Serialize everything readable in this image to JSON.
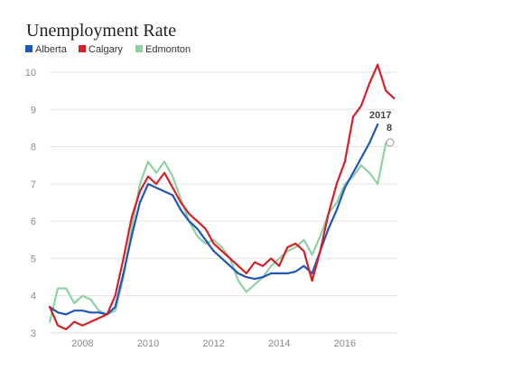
{
  "chart_data": {
    "type": "line",
    "title": "Unemployment Rate",
    "xlabel": "",
    "ylabel": "",
    "xlim": [
      2007,
      2017.6
    ],
    "ylim": [
      3,
      10.4
    ],
    "y_ticks": [
      3,
      4,
      5,
      6,
      7,
      8,
      9,
      10
    ],
    "x_ticks": [
      2008,
      2010,
      2012,
      2014,
      2016
    ],
    "grid": true,
    "legend_position": "top-left",
    "annotations": [
      "2017",
      "8"
    ],
    "series": [
      {
        "name": "Alberta",
        "color": "#1f56b8",
        "points": [
          [
            2007.0,
            3.7
          ],
          [
            2007.25,
            3.55
          ],
          [
            2007.5,
            3.5
          ],
          [
            2007.75,
            3.6
          ],
          [
            2008.0,
            3.6
          ],
          [
            2008.25,
            3.55
          ],
          [
            2008.5,
            3.55
          ],
          [
            2008.75,
            3.5
          ],
          [
            2009.0,
            3.7
          ],
          [
            2009.25,
            4.6
          ],
          [
            2009.5,
            5.6
          ],
          [
            2009.75,
            6.5
          ],
          [
            2010.0,
            7.0
          ],
          [
            2010.25,
            6.9
          ],
          [
            2010.5,
            6.8
          ],
          [
            2010.75,
            6.7
          ],
          [
            2011.0,
            6.3
          ],
          [
            2011.25,
            6.0
          ],
          [
            2011.5,
            5.8
          ],
          [
            2011.75,
            5.5
          ],
          [
            2012.0,
            5.2
          ],
          [
            2012.25,
            5.0
          ],
          [
            2012.5,
            4.8
          ],
          [
            2012.75,
            4.6
          ],
          [
            2013.0,
            4.5
          ],
          [
            2013.25,
            4.45
          ],
          [
            2013.5,
            4.5
          ],
          [
            2013.75,
            4.6
          ],
          [
            2014.0,
            4.6
          ],
          [
            2014.25,
            4.6
          ],
          [
            2014.5,
            4.65
          ],
          [
            2014.75,
            4.8
          ],
          [
            2015.0,
            4.6
          ],
          [
            2015.25,
            5.2
          ],
          [
            2015.5,
            5.8
          ],
          [
            2015.75,
            6.3
          ],
          [
            2016.0,
            6.9
          ],
          [
            2016.25,
            7.3
          ],
          [
            2016.5,
            7.7
          ],
          [
            2016.75,
            8.1
          ],
          [
            2017.0,
            8.6
          ]
        ]
      },
      {
        "name": "Calgary",
        "color": "#d62027",
        "points": [
          [
            2007.0,
            3.7
          ],
          [
            2007.25,
            3.2
          ],
          [
            2007.5,
            3.1
          ],
          [
            2007.75,
            3.3
          ],
          [
            2008.0,
            3.2
          ],
          [
            2008.25,
            3.3
          ],
          [
            2008.5,
            3.4
          ],
          [
            2008.75,
            3.5
          ],
          [
            2009.0,
            4.0
          ],
          [
            2009.25,
            5.0
          ],
          [
            2009.5,
            6.1
          ],
          [
            2009.75,
            6.8
          ],
          [
            2010.0,
            7.2
          ],
          [
            2010.25,
            7.0
          ],
          [
            2010.5,
            7.3
          ],
          [
            2010.75,
            6.9
          ],
          [
            2011.0,
            6.5
          ],
          [
            2011.25,
            6.2
          ],
          [
            2011.5,
            6.0
          ],
          [
            2011.75,
            5.8
          ],
          [
            2012.0,
            5.4
          ],
          [
            2012.25,
            5.2
          ],
          [
            2012.5,
            5.0
          ],
          [
            2012.75,
            4.8
          ],
          [
            2013.0,
            4.6
          ],
          [
            2013.25,
            4.9
          ],
          [
            2013.5,
            4.8
          ],
          [
            2013.75,
            5.0
          ],
          [
            2014.0,
            4.8
          ],
          [
            2014.25,
            5.3
          ],
          [
            2014.5,
            5.4
          ],
          [
            2014.75,
            5.2
          ],
          [
            2015.0,
            4.4
          ],
          [
            2015.25,
            5.2
          ],
          [
            2015.5,
            6.2
          ],
          [
            2015.75,
            7.0
          ],
          [
            2016.0,
            7.6
          ],
          [
            2016.25,
            8.8
          ],
          [
            2016.5,
            9.1
          ],
          [
            2016.75,
            9.7
          ],
          [
            2017.0,
            10.2
          ],
          [
            2017.25,
            9.5
          ],
          [
            2017.5,
            9.3
          ]
        ]
      },
      {
        "name": "Edmonton",
        "color": "#8fd1a3",
        "points": [
          [
            2007.0,
            3.3
          ],
          [
            2007.25,
            4.2
          ],
          [
            2007.5,
            4.2
          ],
          [
            2007.75,
            3.8
          ],
          [
            2008.0,
            4.0
          ],
          [
            2008.25,
            3.9
          ],
          [
            2008.5,
            3.6
          ],
          [
            2008.75,
            3.5
          ],
          [
            2009.0,
            3.6
          ],
          [
            2009.25,
            4.5
          ],
          [
            2009.5,
            5.8
          ],
          [
            2009.75,
            7.0
          ],
          [
            2010.0,
            7.6
          ],
          [
            2010.25,
            7.3
          ],
          [
            2010.5,
            7.6
          ],
          [
            2010.75,
            7.2
          ],
          [
            2011.0,
            6.6
          ],
          [
            2011.25,
            6.0
          ],
          [
            2011.5,
            5.6
          ],
          [
            2011.75,
            5.4
          ],
          [
            2012.0,
            5.5
          ],
          [
            2012.25,
            5.3
          ],
          [
            2012.5,
            5.0
          ],
          [
            2012.75,
            4.4
          ],
          [
            2013.0,
            4.1
          ],
          [
            2013.25,
            4.3
          ],
          [
            2013.5,
            4.5
          ],
          [
            2013.75,
            4.8
          ],
          [
            2014.0,
            5.0
          ],
          [
            2014.25,
            5.2
          ],
          [
            2014.5,
            5.3
          ],
          [
            2014.75,
            5.5
          ],
          [
            2015.0,
            5.1
          ],
          [
            2015.25,
            5.6
          ],
          [
            2015.5,
            6.2
          ],
          [
            2015.75,
            6.5
          ],
          [
            2016.0,
            7.0
          ],
          [
            2016.25,
            7.2
          ],
          [
            2016.5,
            7.5
          ],
          [
            2016.75,
            7.3
          ],
          [
            2017.0,
            7.0
          ],
          [
            2017.25,
            8.1
          ],
          [
            2017.4,
            8.2
          ]
        ]
      }
    ]
  }
}
